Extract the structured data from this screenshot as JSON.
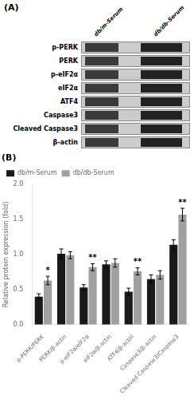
{
  "chart_data": {
    "type": "bar",
    "categories": [
      "p-PERK/PERK",
      "PERK/β-actin",
      "p-eIF2α/eIF2α",
      "eIF2α/β-actin",
      "ATF4/β-actin",
      "Caspase3/β-actin",
      "Cleaved Caspase3/Caspase3"
    ],
    "series": [
      {
        "name": "db/m-Serum",
        "color": "#1a1a1a",
        "values": [
          0.4,
          1.01,
          0.53,
          0.86,
          0.47,
          0.65,
          1.14
        ],
        "errors": [
          0.04,
          0.07,
          0.04,
          0.05,
          0.05,
          0.06,
          0.07
        ]
      },
      {
        "name": "db/db-Serum",
        "color": "#a0a0a0",
        "values": [
          0.63,
          0.99,
          0.82,
          0.88,
          0.76,
          0.71,
          1.57
        ],
        "errors": [
          0.06,
          0.05,
          0.05,
          0.06,
          0.05,
          0.06,
          0.09
        ]
      }
    ],
    "ylabel": "Relative protein expression (fold)",
    "ylim": [
      0,
      2.0
    ],
    "yticks": [
      {
        "value": 0.0,
        "label": "0.0"
      },
      0.5,
      {
        "value": 1.0,
        "label": "1.0"
      },
      1.5,
      {
        "value": 2.0,
        "label": "2.0"
      }
    ],
    "grid": false,
    "legend": "upper left",
    "annotations": [
      {
        "text": "(A)",
        "columns": [
          "db/m-Serum",
          "db/db-Serum"
        ],
        "rows": [
          "p-PERK",
          "PERK",
          "p-eIF2α",
          "eIF2α",
          "ATF4",
          "Caspase3",
          "Cleaved Caspase3",
          "β-actin"
        ]
      },
      {
        "text": "(B)"
      },
      {
        "text": "*",
        "category": "p-PERK/PERK",
        "series": "db/db-Serum"
      },
      {
        "text": "**",
        "category": "p-eIF2α/eIF2α",
        "series": "db/db-Serum"
      },
      {
        "text": "**",
        "category": "ATF4/β-actin",
        "series": "db/db-Serum"
      },
      {
        "text": "**",
        "category": "Cleaved Caspase3/Caspase3",
        "series": "db/db-Serum"
      }
    ]
  }
}
